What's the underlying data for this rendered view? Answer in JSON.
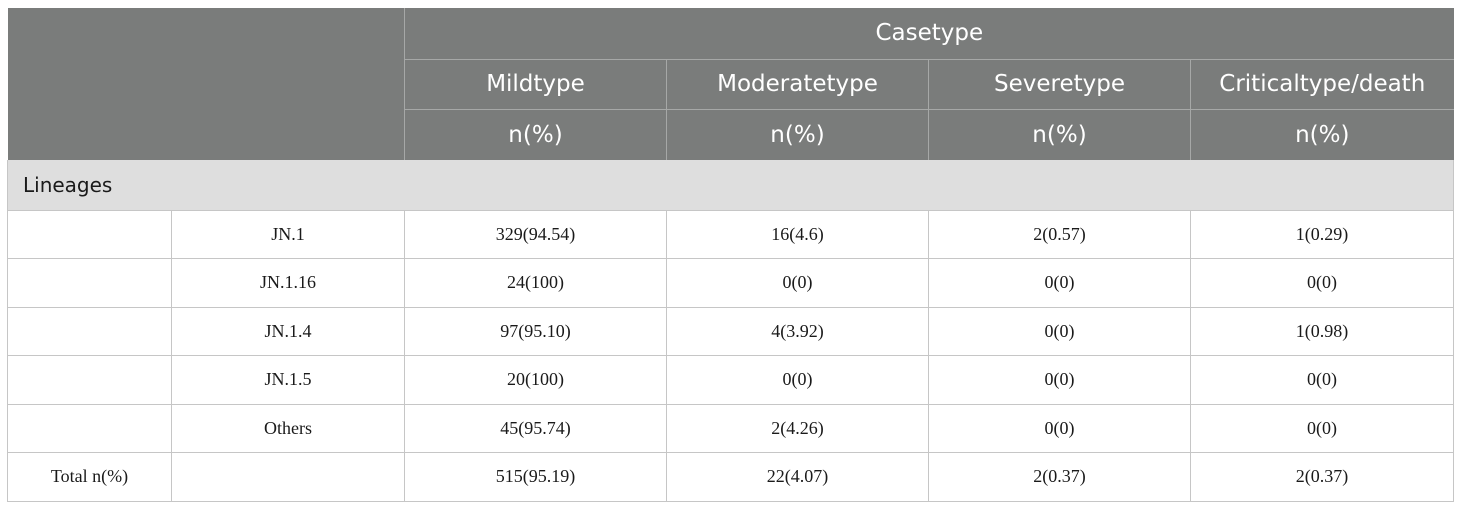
{
  "header": {
    "group_title": "Casetype",
    "columns": [
      "Mildtype",
      "Moderatetype",
      "Severetype",
      "Criticaltype/death"
    ],
    "unit": "n(%)"
  },
  "section_label": "Lineages",
  "rows": [
    {
      "label": "",
      "lineage": "JN.1",
      "values": [
        "329(94.54)",
        "16(4.6)",
        "2(0.57)",
        "1(0.29)"
      ]
    },
    {
      "label": "",
      "lineage": "JN.1.16",
      "values": [
        "24(100)",
        "0(0)",
        "0(0)",
        "0(0)"
      ]
    },
    {
      "label": "",
      "lineage": "JN.1.4",
      "values": [
        "97(95.10)",
        "4(3.92)",
        "0(0)",
        "1(0.98)"
      ]
    },
    {
      "label": "",
      "lineage": "JN.1.5",
      "values": [
        "20(100)",
        "0(0)",
        "0(0)",
        "0(0)"
      ]
    },
    {
      "label": "",
      "lineage": "Others",
      "values": [
        "45(95.74)",
        "2(4.26)",
        "0(0)",
        "0(0)"
      ]
    },
    {
      "label": "Total n(%)",
      "lineage": "",
      "values": [
        "515(95.19)",
        "22(4.07)",
        "2(0.37)",
        "2(0.37)"
      ]
    }
  ],
  "colors": {
    "header_bg": "#7a7c7b",
    "section_bg": "#dedede",
    "grid": "#c6c6c6"
  }
}
